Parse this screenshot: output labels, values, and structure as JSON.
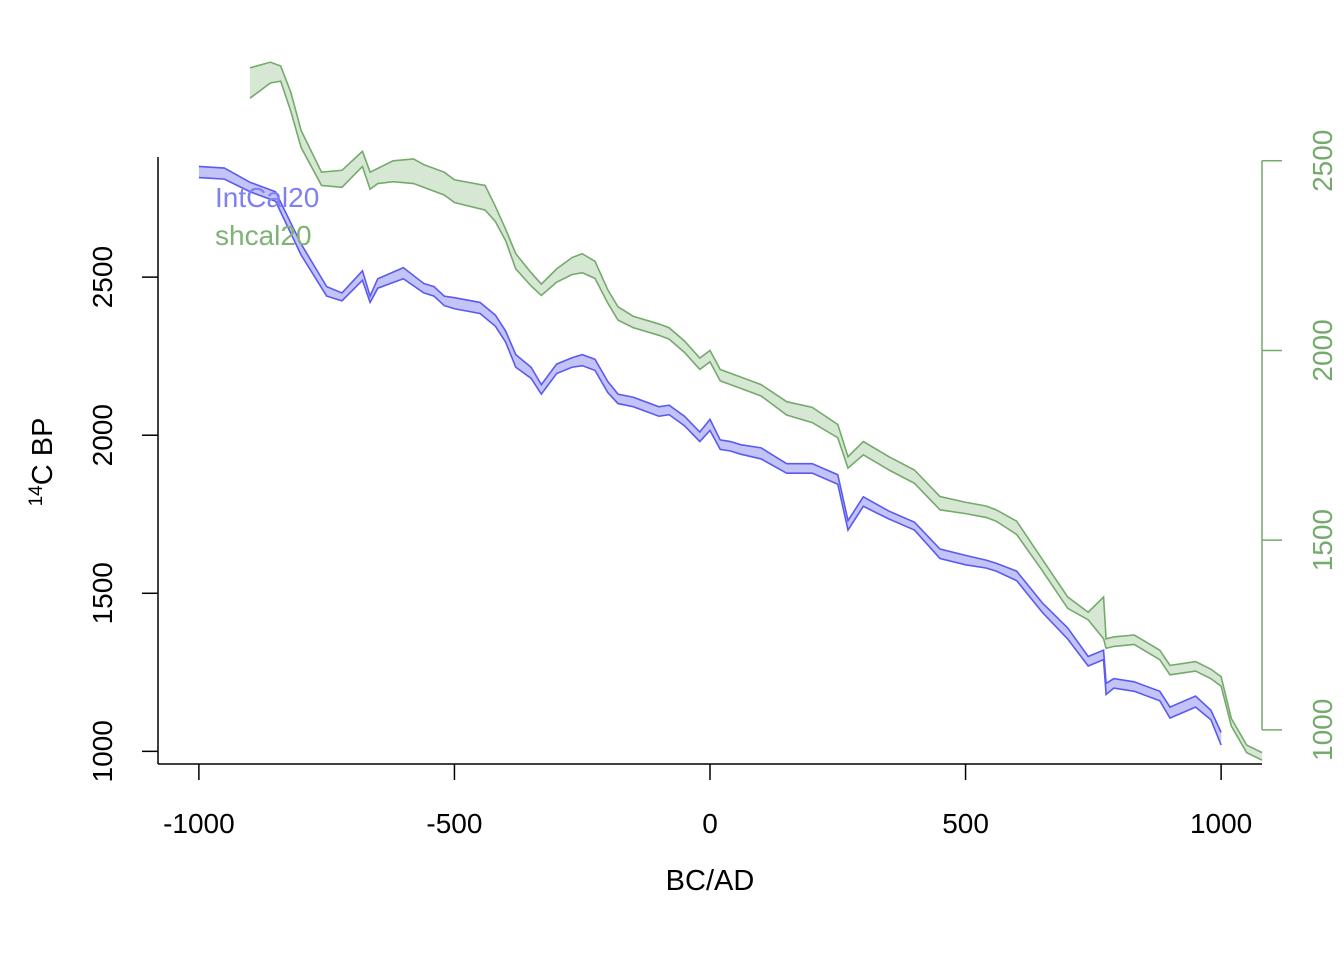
{
  "chart_data": {
    "type": "area",
    "xlabel": "BC/AD",
    "ylabel_main": "C BP",
    "ylabel_sup": "14",
    "xlim": [
      -1080,
      1080
    ],
    "ylim": [
      960,
      2880
    ],
    "right_ylim": [
      910,
      2510
    ],
    "x_ticks": [
      -1000,
      -500,
      0,
      500,
      1000
    ],
    "x_tick_labels": [
      "-1000",
      "-500",
      "0",
      "500",
      "1000"
    ],
    "y_ticks": [
      1000,
      1500,
      2000,
      2500
    ],
    "y_tick_labels": [
      "1000",
      "1500",
      "2000",
      "2500"
    ],
    "right_y_ticks": [
      1000,
      1500,
      2000,
      2500
    ],
    "right_y_tick_labels": [
      "1000",
      "1500",
      "2000",
      "2500"
    ],
    "legend": {
      "position": "top-left",
      "entries": [
        "IntCal20",
        "shcal20"
      ]
    },
    "colors": {
      "intcal": "#5a5af0",
      "intcal_fill": "#b9b9f6",
      "shcal": "#74aa6b",
      "shcal_fill": "#cfe3cb",
      "axis": "#000000"
    },
    "series": [
      {
        "name": "IntCal20",
        "x": [
          -1000,
          -950,
          -900,
          -850,
          -800,
          -750,
          -720,
          -680,
          -665,
          -650,
          -600,
          -560,
          -540,
          -520,
          -500,
          -450,
          -420,
          -400,
          -380,
          -350,
          -330,
          -300,
          -270,
          -250,
          -225,
          -200,
          -180,
          -150,
          -100,
          -80,
          -50,
          -20,
          0,
          20,
          40,
          60,
          100,
          150,
          200,
          250,
          270,
          300,
          350,
          400,
          450,
          500,
          540,
          560,
          600,
          650,
          700,
          740,
          770,
          775,
          790,
          830,
          880,
          900,
          950,
          980,
          1000
        ],
        "y_upper": [
          2850,
          2845,
          2800,
          2770,
          2605,
          2470,
          2450,
          2520,
          2440,
          2495,
          2530,
          2480,
          2470,
          2440,
          2435,
          2420,
          2380,
          2330,
          2255,
          2215,
          2160,
          2225,
          2245,
          2255,
          2240,
          2170,
          2130,
          2120,
          2090,
          2095,
          2060,
          2010,
          2050,
          1985,
          1980,
          1970,
          1960,
          1910,
          1910,
          1875,
          1730,
          1805,
          1760,
          1725,
          1640,
          1620,
          1605,
          1595,
          1570,
          1470,
          1390,
          1300,
          1320,
          1215,
          1230,
          1220,
          1190,
          1140,
          1175,
          1130,
          1060
        ],
        "y_lower": [
          2815,
          2810,
          2770,
          2740,
          2570,
          2440,
          2425,
          2490,
          2420,
          2465,
          2495,
          2450,
          2440,
          2410,
          2400,
          2385,
          2345,
          2295,
          2215,
          2180,
          2130,
          2195,
          2215,
          2220,
          2205,
          2135,
          2100,
          2090,
          2060,
          2065,
          2030,
          1980,
          2015,
          1955,
          1950,
          1940,
          1925,
          1880,
          1880,
          1845,
          1700,
          1775,
          1735,
          1700,
          1610,
          1590,
          1580,
          1570,
          1540,
          1440,
          1355,
          1270,
          1290,
          1180,
          1200,
          1190,
          1160,
          1105,
          1140,
          1100,
          1020
        ]
      },
      {
        "name": "shcal20",
        "x": [
          -900,
          -860,
          -840,
          -820,
          -800,
          -760,
          -720,
          -680,
          -665,
          -650,
          -620,
          -580,
          -560,
          -520,
          -500,
          -440,
          -420,
          -400,
          -380,
          -350,
          -330,
          -300,
          -270,
          -250,
          -225,
          -200,
          -180,
          -150,
          -100,
          -80,
          -50,
          -20,
          0,
          20,
          40,
          60,
          100,
          150,
          200,
          250,
          270,
          300,
          350,
          400,
          450,
          500,
          540,
          560,
          600,
          650,
          700,
          740,
          770,
          775,
          790,
          830,
          880,
          900,
          950,
          980,
          1000,
          1020,
          1050,
          1080
        ],
        "y_upper": [
          2745,
          2760,
          2750,
          2680,
          2580,
          2470,
          2475,
          2525,
          2470,
          2480,
          2500,
          2505,
          2490,
          2470,
          2450,
          2435,
          2380,
          2320,
          2255,
          2205,
          2175,
          2215,
          2245,
          2255,
          2235,
          2160,
          2115,
          2090,
          2070,
          2060,
          2025,
          1980,
          2000,
          1950,
          1940,
          1930,
          1910,
          1865,
          1850,
          1805,
          1720,
          1760,
          1720,
          1685,
          1615,
          1600,
          1590,
          1580,
          1550,
          1450,
          1350,
          1310,
          1350,
          1240,
          1245,
          1250,
          1210,
          1170,
          1180,
          1160,
          1140,
          1030,
          960,
          940
        ],
        "y_lower": [
          2665,
          2705,
          2710,
          2630,
          2535,
          2435,
          2430,
          2485,
          2425,
          2440,
          2445,
          2440,
          2430,
          2410,
          2390,
          2370,
          2340,
          2290,
          2215,
          2170,
          2145,
          2180,
          2200,
          2205,
          2190,
          2125,
          2080,
          2060,
          2040,
          2030,
          1995,
          1950,
          1970,
          1920,
          1910,
          1900,
          1880,
          1830,
          1810,
          1770,
          1690,
          1725,
          1685,
          1650,
          1580,
          1570,
          1560,
          1550,
          1515,
          1420,
          1320,
          1290,
          1240,
          1215,
          1220,
          1225,
          1185,
          1145,
          1155,
          1135,
          1115,
          1010,
          940,
          920
        ]
      }
    ]
  }
}
